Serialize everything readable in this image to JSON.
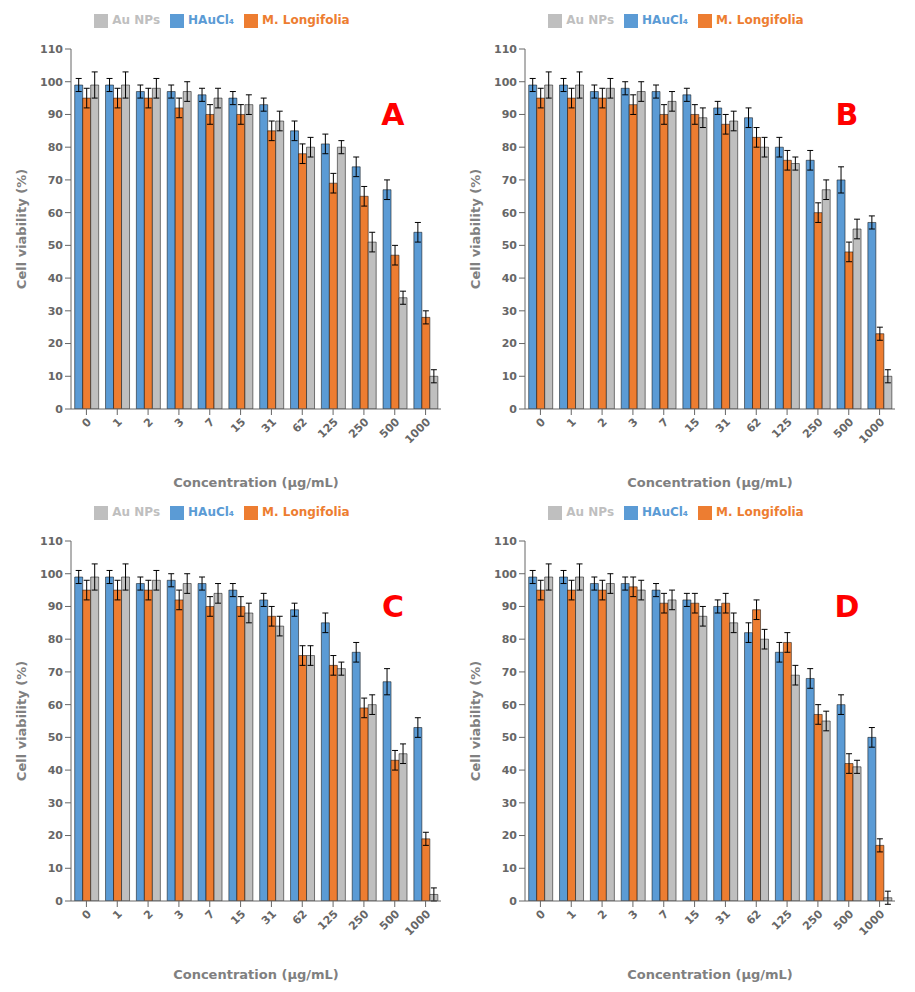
{
  "chart_data": [
    {
      "type": "bar",
      "categories": [
        "0",
        "1",
        "2",
        "3",
        "7",
        "15",
        "31",
        "62",
        "125",
        "250",
        "500",
        "1000"
      ],
      "series": [
        {
          "name": "HAuCl₄",
          "color": "#5B9BD5",
          "values": [
            99,
            99,
            97,
            97,
            96,
            95,
            93,
            85,
            81,
            74,
            67,
            54
          ],
          "errors": [
            2,
            2,
            2,
            2,
            2,
            2,
            2,
            3,
            3,
            3,
            3,
            3
          ]
        },
        {
          "name": "M. Longifolia",
          "color": "#ED7D31",
          "values": [
            95,
            95,
            95,
            92,
            90,
            90,
            85,
            78,
            69,
            65,
            47,
            28
          ],
          "errors": [
            3,
            3,
            3,
            3,
            3,
            3,
            3,
            3,
            3,
            3,
            3,
            2
          ]
        },
        {
          "name": "Au NPs",
          "color": "#BFBFBF",
          "values": [
            99,
            99,
            98,
            97,
            95,
            93,
            88,
            80,
            80,
            51,
            34,
            10
          ],
          "errors": [
            4,
            4,
            3,
            3,
            3,
            3,
            3,
            3,
            2,
            3,
            2,
            2
          ]
        }
      ],
      "xlabel": "Concentration (μg/mL)",
      "ylabel": "Cell viability (%)",
      "ylim": [
        0,
        110
      ],
      "yticks": [
        0,
        10,
        20,
        30,
        40,
        50,
        60,
        70,
        80,
        90,
        100,
        110
      ],
      "grid": false,
      "legend": "upper center",
      "annotations": [
        {
          "text": "A",
          "color": "red"
        }
      ]
    },
    {
      "type": "bar",
      "categories": [
        "0",
        "1",
        "2",
        "3",
        "7",
        "15",
        "31",
        "62",
        "125",
        "250",
        "500",
        "1000"
      ],
      "series": [
        {
          "name": "HAuCl₄",
          "color": "#5B9BD5",
          "values": [
            99,
            99,
            97,
            98,
            97,
            96,
            92,
            89,
            80,
            76,
            70,
            57
          ],
          "errors": [
            2,
            2,
            2,
            2,
            2,
            2,
            2,
            3,
            3,
            3,
            4,
            2
          ]
        },
        {
          "name": "M. Longifolia",
          "color": "#ED7D31",
          "values": [
            95,
            95,
            95,
            93,
            90,
            90,
            87,
            83,
            76,
            60,
            48,
            23
          ],
          "errors": [
            3,
            3,
            3,
            3,
            3,
            3,
            3,
            3,
            3,
            3,
            3,
            2
          ]
        },
        {
          "name": "Au NPs",
          "color": "#BFBFBF",
          "values": [
            99,
            99,
            98,
            97,
            94,
            89,
            88,
            80,
            75,
            67,
            55,
            10
          ],
          "errors": [
            4,
            4,
            3,
            3,
            3,
            3,
            3,
            3,
            2,
            3,
            3,
            2
          ]
        }
      ],
      "xlabel": "Concentration (μg/mL)",
      "ylabel": "Cell viability (%)",
      "ylim": [
        0,
        110
      ],
      "yticks": [
        0,
        10,
        20,
        30,
        40,
        50,
        60,
        70,
        80,
        90,
        100,
        110
      ],
      "grid": false,
      "legend": "upper center",
      "annotations": [
        {
          "text": "B",
          "color": "red"
        }
      ]
    },
    {
      "type": "bar",
      "categories": [
        "0",
        "1",
        "2",
        "3",
        "7",
        "15",
        "31",
        "62",
        "125",
        "250",
        "500",
        "1000"
      ],
      "series": [
        {
          "name": "HAuCl₄",
          "color": "#5B9BD5",
          "values": [
            99,
            99,
            97,
            98,
            97,
            95,
            92,
            89,
            85,
            76,
            67,
            53
          ],
          "errors": [
            2,
            2,
            2,
            2,
            2,
            2,
            2,
            2,
            3,
            3,
            4,
            3
          ]
        },
        {
          "name": "M. Longifolia",
          "color": "#ED7D31",
          "values": [
            95,
            95,
            95,
            92,
            90,
            90,
            87,
            75,
            72,
            59,
            43,
            19
          ],
          "errors": [
            3,
            3,
            3,
            3,
            3,
            3,
            3,
            3,
            3,
            3,
            3,
            2
          ]
        },
        {
          "name": "Au NPs",
          "color": "#BFBFBF",
          "values": [
            99,
            99,
            98,
            97,
            94,
            88,
            84,
            75,
            71,
            60,
            45,
            2
          ],
          "errors": [
            4,
            4,
            3,
            3,
            3,
            3,
            3,
            3,
            2,
            3,
            3,
            2
          ]
        }
      ],
      "xlabel": "Concentration (μg/mL)",
      "ylabel": "Cell viability (%)",
      "ylim": [
        0,
        110
      ],
      "yticks": [
        0,
        10,
        20,
        30,
        40,
        50,
        60,
        70,
        80,
        90,
        100,
        110
      ],
      "grid": false,
      "legend": "upper center",
      "annotations": [
        {
          "text": "C",
          "color": "red"
        }
      ]
    },
    {
      "type": "bar",
      "categories": [
        "0",
        "1",
        "2",
        "3",
        "7",
        "15",
        "31",
        "62",
        "125",
        "250",
        "500",
        "1000"
      ],
      "series": [
        {
          "name": "HAuCl₄",
          "color": "#5B9BD5",
          "values": [
            99,
            99,
            97,
            97,
            95,
            92,
            90,
            82,
            76,
            68,
            60,
            50
          ],
          "errors": [
            2,
            2,
            2,
            2,
            2,
            2,
            2,
            3,
            3,
            3,
            3,
            3
          ]
        },
        {
          "name": "M. Longifolia",
          "color": "#ED7D31",
          "values": [
            95,
            95,
            95,
            96,
            91,
            91,
            91,
            89,
            79,
            57,
            42,
            17
          ],
          "errors": [
            3,
            3,
            3,
            3,
            3,
            3,
            3,
            3,
            3,
            3,
            3,
            2
          ]
        },
        {
          "name": "Au NPs",
          "color": "#BFBFBF",
          "values": [
            99,
            99,
            97,
            95,
            92,
            87,
            85,
            80,
            69,
            55,
            41,
            1
          ],
          "errors": [
            4,
            4,
            3,
            3,
            3,
            3,
            3,
            3,
            3,
            3,
            2,
            2
          ]
        }
      ],
      "xlabel": "Concentration (μg/mL)",
      "ylabel": "Cell viability (%)",
      "ylim": [
        0,
        110
      ],
      "yticks": [
        0,
        10,
        20,
        30,
        40,
        50,
        60,
        70,
        80,
        90,
        100,
        110
      ],
      "grid": false,
      "legend": "upper center",
      "annotations": [
        {
          "text": "D",
          "color": "red"
        }
      ]
    }
  ]
}
